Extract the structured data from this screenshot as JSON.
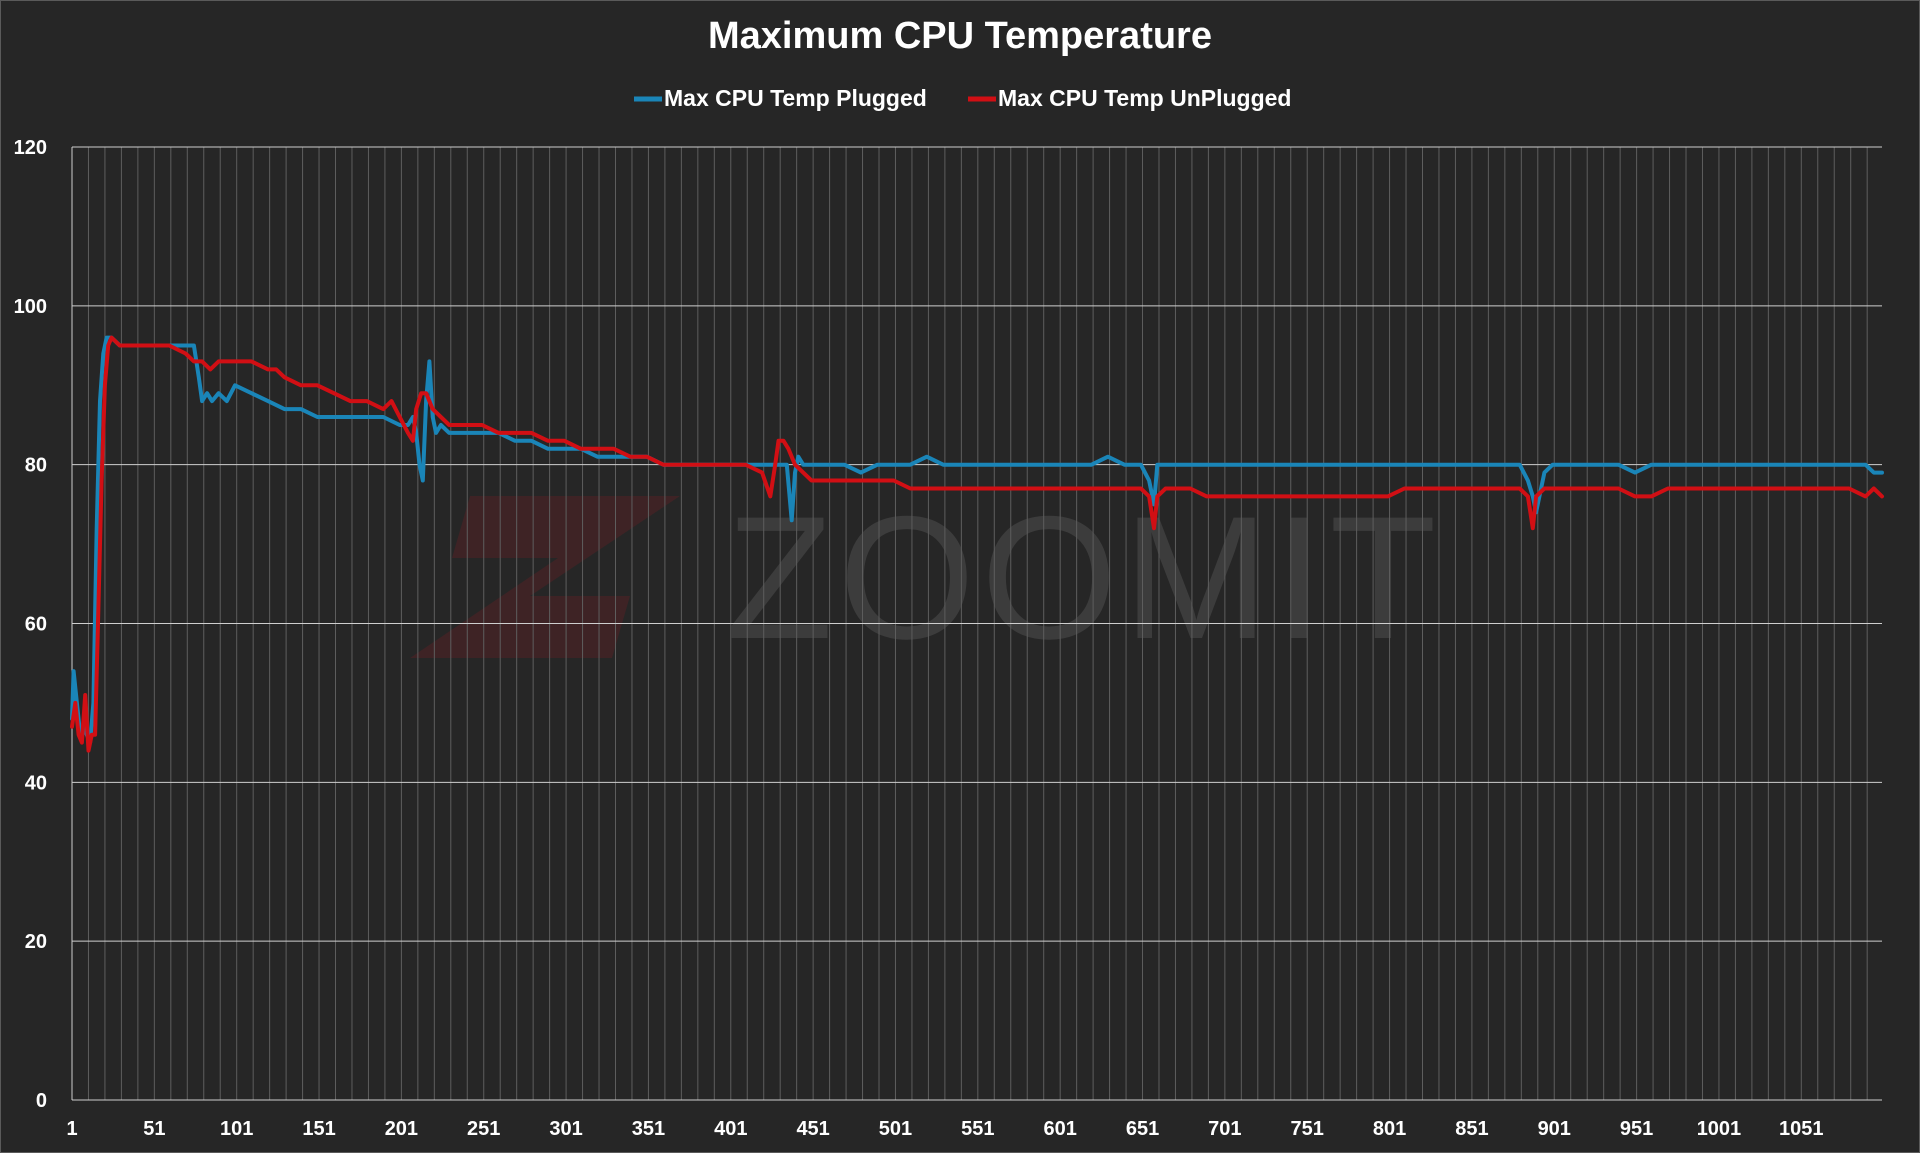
{
  "page": {
    "watermark_text": "ZOOMIT"
  },
  "colors": {
    "background": "#262626",
    "grid_major": "#cfcfcf",
    "grid_minor": "#5e5e5e",
    "text": "#ffffff",
    "plugged": "#1a85b8",
    "unplugged": "#d10f14",
    "watermark_logo": "#6e1f24"
  },
  "chart_data": {
    "type": "line",
    "title": "Maximum CPU Temperature",
    "xlabel": "",
    "ylabel": "",
    "xlim": [
      1,
      1100
    ],
    "ylim": [
      0,
      120
    ],
    "y_ticks": [
      0,
      20,
      40,
      60,
      80,
      100,
      120
    ],
    "x_tick_labels": [
      1,
      51,
      101,
      151,
      201,
      251,
      301,
      351,
      401,
      451,
      501,
      551,
      601,
      651,
      701,
      751,
      801,
      851,
      901,
      951,
      1001,
      1051
    ],
    "x_minor_step": 10,
    "grid": true,
    "legend": "top-center",
    "series": [
      {
        "name": "Max CPU Temp Plugged",
        "color": "#1a85b8",
        "x": [
          1,
          2,
          4,
          6,
          8,
          10,
          12,
          14,
          16,
          18,
          20,
          22,
          25,
          30,
          40,
          50,
          60,
          70,
          75,
          78,
          80,
          83,
          86,
          90,
          95,
          100,
          110,
          120,
          130,
          140,
          150,
          160,
          170,
          180,
          190,
          200,
          205,
          208,
          210,
          212,
          214,
          216,
          218,
          220,
          222,
          225,
          230,
          240,
          250,
          260,
          270,
          280,
          290,
          300,
          310,
          320,
          330,
          340,
          350,
          360,
          370,
          380,
          390,
          400,
          410,
          420,
          430,
          435,
          438,
          440,
          442,
          445,
          450,
          460,
          470,
          480,
          490,
          500,
          510,
          520,
          530,
          540,
          550,
          560,
          570,
          580,
          590,
          600,
          610,
          620,
          630,
          640,
          650,
          655,
          658,
          660,
          665,
          670,
          680,
          690,
          700,
          710,
          720,
          730,
          740,
          750,
          760,
          770,
          780,
          790,
          800,
          810,
          820,
          830,
          840,
          850,
          860,
          870,
          880,
          885,
          888,
          890,
          892,
          895,
          900,
          910,
          920,
          930,
          940,
          950,
          960,
          970,
          980,
          990,
          1000,
          1010,
          1020,
          1030,
          1040,
          1050,
          1060,
          1070,
          1080,
          1090,
          1095,
          1100
        ],
        "values": [
          48,
          54,
          50,
          46,
          47,
          46,
          45,
          50,
          72,
          88,
          94,
          96,
          96,
          95,
          95,
          95,
          95,
          95,
          95,
          91,
          88,
          89,
          88,
          89,
          88,
          90,
          89,
          88,
          87,
          87,
          86,
          86,
          86,
          86,
          86,
          85,
          85,
          86,
          84,
          80,
          78,
          88,
          93,
          86,
          84,
          85,
          84,
          84,
          84,
          84,
          83,
          83,
          82,
          82,
          82,
          81,
          81,
          81,
          81,
          80,
          80,
          80,
          80,
          80,
          80,
          80,
          80,
          80,
          73,
          79,
          81,
          80,
          80,
          80,
          80,
          79,
          80,
          80,
          80,
          81,
          80,
          80,
          80,
          80,
          80,
          80,
          80,
          80,
          80,
          80,
          81,
          80,
          80,
          78,
          75,
          80,
          80,
          80,
          80,
          80,
          80,
          80,
          80,
          80,
          80,
          80,
          80,
          80,
          80,
          80,
          80,
          80,
          80,
          80,
          80,
          80,
          80,
          80,
          80,
          78,
          76,
          74,
          76,
          79,
          80,
          80,
          80,
          80,
          80,
          79,
          80,
          80,
          80,
          80,
          80,
          80,
          80,
          80,
          80,
          80,
          80,
          80,
          80,
          80,
          79,
          79
        ]
      },
      {
        "name": "Max CPU Temp UnPlugged",
        "color": "#d10f14",
        "x": [
          1,
          3,
          5,
          7,
          9,
          11,
          13,
          15,
          17,
          19,
          21,
          23,
          25,
          30,
          40,
          50,
          60,
          70,
          75,
          80,
          85,
          90,
          95,
          100,
          110,
          120,
          125,
          130,
          140,
          150,
          160,
          170,
          180,
          190,
          195,
          200,
          205,
          208,
          210,
          213,
          216,
          220,
          225,
          230,
          240,
          250,
          260,
          270,
          280,
          290,
          300,
          310,
          320,
          330,
          340,
          350,
          360,
          370,
          380,
          390,
          400,
          410,
          420,
          425,
          428,
          430,
          433,
          436,
          440,
          445,
          450,
          460,
          470,
          480,
          490,
          500,
          510,
          520,
          530,
          540,
          550,
          560,
          570,
          580,
          590,
          600,
          610,
          620,
          630,
          640,
          650,
          655,
          658,
          660,
          665,
          670,
          680,
          690,
          700,
          710,
          720,
          730,
          740,
          750,
          760,
          770,
          780,
          790,
          800,
          810,
          820,
          830,
          840,
          850,
          860,
          870,
          880,
          885,
          888,
          890,
          895,
          900,
          910,
          920,
          930,
          940,
          950,
          960,
          970,
          980,
          990,
          1000,
          1010,
          1020,
          1030,
          1040,
          1050,
          1060,
          1070,
          1080,
          1090,
          1095,
          1100
        ],
        "values": [
          47,
          50,
          46,
          45,
          51,
          44,
          46,
          46,
          62,
          78,
          90,
          95,
          96,
          95,
          95,
          95,
          95,
          94,
          93,
          93,
          92,
          93,
          93,
          93,
          93,
          92,
          92,
          91,
          90,
          90,
          89,
          88,
          88,
          87,
          88,
          86,
          84,
          83,
          87,
          89,
          89,
          87,
          86,
          85,
          85,
          85,
          84,
          84,
          84,
          83,
          83,
          82,
          82,
          82,
          81,
          81,
          80,
          80,
          80,
          80,
          80,
          80,
          79,
          76,
          80,
          83,
          83,
          82,
          80,
          79,
          78,
          78,
          78,
          78,
          78,
          78,
          77,
          77,
          77,
          77,
          77,
          77,
          77,
          77,
          77,
          77,
          77,
          77,
          77,
          77,
          77,
          76,
          72,
          76,
          77,
          77,
          77,
          76,
          76,
          76,
          76,
          76,
          76,
          76,
          76,
          76,
          76,
          76,
          76,
          77,
          77,
          77,
          77,
          77,
          77,
          77,
          77,
          76,
          72,
          76,
          77,
          77,
          77,
          77,
          77,
          77,
          76,
          76,
          77,
          77,
          77,
          77,
          77,
          77,
          77,
          77,
          77,
          77,
          77,
          77,
          76,
          77,
          76
        ]
      }
    ]
  }
}
